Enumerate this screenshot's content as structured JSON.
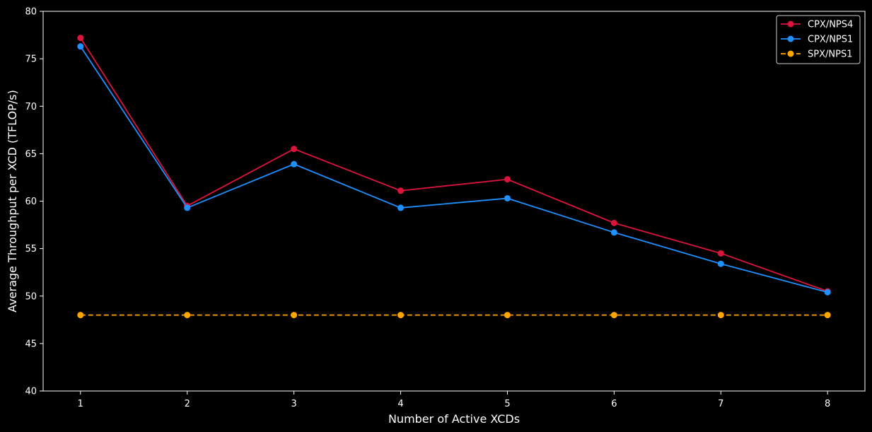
{
  "chart_data": {
    "type": "line",
    "title": "",
    "xlabel": "Number of Active XCDs",
    "ylabel": "Average Throughput per XCD (TFLOP/s)",
    "x": [
      1,
      2,
      3,
      4,
      5,
      6,
      7,
      8
    ],
    "xlim": [
      0.65,
      8.35
    ],
    "ylim": [
      40,
      80
    ],
    "xticks": [
      "1",
      "2",
      "3",
      "4",
      "5",
      "6",
      "7",
      "8"
    ],
    "yticks": [
      "40",
      "45",
      "50",
      "55",
      "60",
      "65",
      "70",
      "75",
      "80"
    ],
    "grid": false,
    "background": "#000000",
    "legend_position": "top-right",
    "series": [
      {
        "name": "CPX/NPS4",
        "color": "#dc143c",
        "line_style": "solid",
        "marker": "circle",
        "values": [
          77.2,
          59.5,
          65.5,
          61.1,
          62.3,
          57.7,
          54.5,
          50.5
        ]
      },
      {
        "name": "CPX/NPS1",
        "color": "#1e90ff",
        "line_style": "solid",
        "marker": "circle",
        "values": [
          76.3,
          59.3,
          63.9,
          59.3,
          60.3,
          56.7,
          53.4,
          50.4
        ]
      },
      {
        "name": "SPX/NPS1",
        "color": "#ffa500",
        "line_style": "dashed",
        "marker": "circle",
        "values": [
          48.0,
          48.0,
          48.0,
          48.0,
          48.0,
          48.0,
          48.0,
          48.0
        ]
      }
    ]
  }
}
